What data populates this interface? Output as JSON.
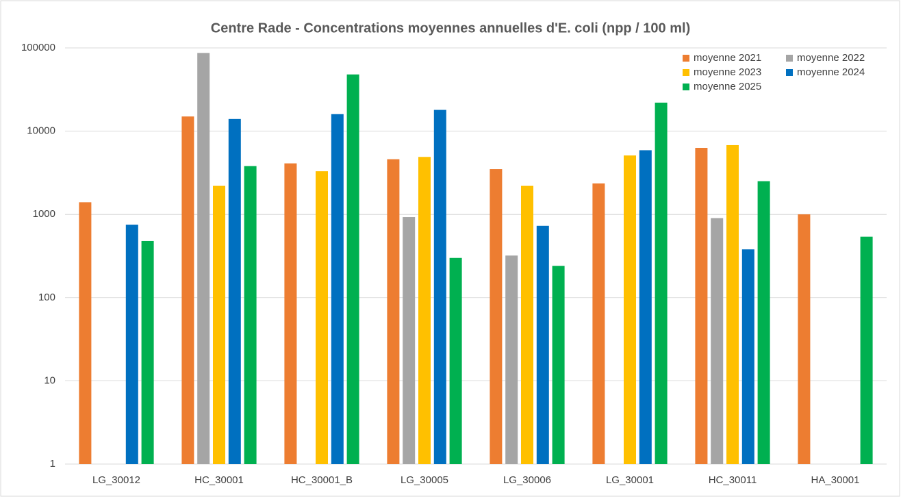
{
  "chart_data": {
    "type": "bar",
    "title": "Centre Rade - Concentrations moyennes annuelles d'E. coli (npp / 100 ml)",
    "categories": [
      "LG_30012",
      "HC_30001",
      "HC_30001_B",
      "LG_30005",
      "LG_30006",
      "LG_30001",
      "HC_30011",
      "HA_30001"
    ],
    "series": [
      {
        "name": "moyenne 2021",
        "color": "#ED7D31",
        "values": [
          1400,
          15000,
          4100,
          4600,
          3500,
          2350,
          6300,
          1000
        ]
      },
      {
        "name": "moyenne 2022",
        "color": "#A5A5A5",
        "values": [
          null,
          87000,
          null,
          930,
          320,
          null,
          900,
          null
        ]
      },
      {
        "name": "moyenne 2023",
        "color": "#FFC000",
        "values": [
          null,
          2200,
          3300,
          4900,
          2200,
          5100,
          6800,
          null
        ]
      },
      {
        "name": "moyenne 2024",
        "color": "#0070C0",
        "values": [
          750,
          14000,
          16000,
          18000,
          730,
          5900,
          380,
          null
        ]
      },
      {
        "name": "moyenne 2025",
        "color": "#00B050",
        "values": [
          480,
          3800,
          48000,
          300,
          240,
          22000,
          2500,
          540
        ]
      }
    ],
    "ylim": [
      1,
      100000
    ],
    "yticks": [
      1,
      10,
      100,
      1000,
      10000,
      100000
    ],
    "log": true,
    "grid": true,
    "legend": "top-right"
  }
}
